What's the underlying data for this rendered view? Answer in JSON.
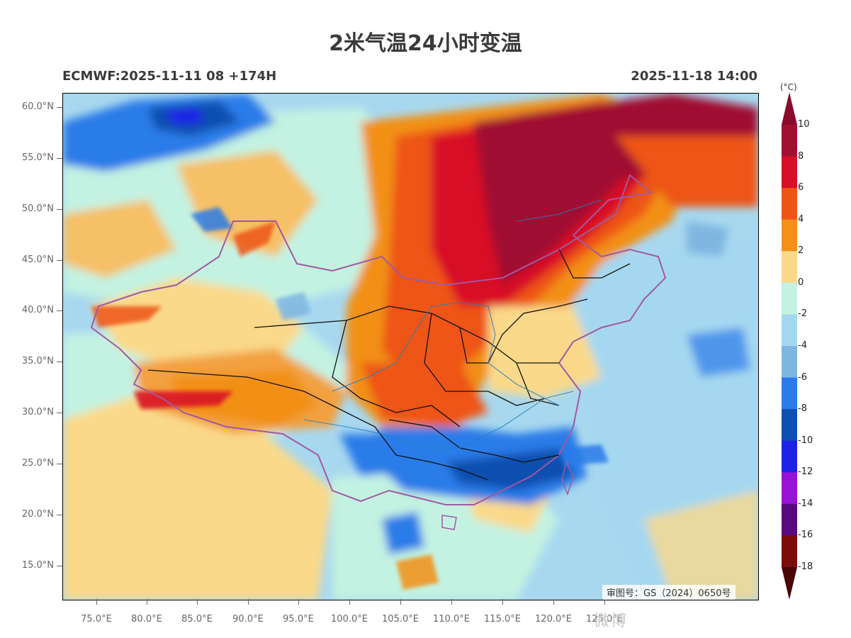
{
  "title": "2米气温24小时变温",
  "subtitle_left": "ECMWF:2025-11-11 08 +174H",
  "subtitle_right": "2025-11-18 14:00",
  "approval_number": "审图号：GS（2024）0650号",
  "watermark": "微博",
  "axes": {
    "lat_labels": [
      "60.0°N",
      "55.0°N",
      "50.0°N",
      "45.0°N",
      "40.0°N",
      "35.0°N",
      "30.0°N",
      "25.0°N",
      "20.0°N",
      "15.0°N"
    ],
    "lon_labels": [
      "75.0°E",
      "80.0°E",
      "85.0°E",
      "90.0°E",
      "95.0°E",
      "100.0°E",
      "105.0°E",
      "110.0°E",
      "115.0°E",
      "120.0°E",
      "125.0°E"
    ]
  },
  "colorbar": {
    "unit": "(°C)",
    "labels": [
      "10",
      "8",
      "6",
      "4",
      "2",
      "0",
      "-2",
      "-4",
      "-6",
      "-8",
      "-10",
      "-12",
      "-14",
      "-16",
      "-18"
    ],
    "colors": [
      "#a01030",
      "#d80f28",
      "#ee5515",
      "#f29018",
      "#fad98a",
      "#c3f2e2",
      "#a5d8f0",
      "#7fb6e0",
      "#2b7be8",
      "#0c50b0",
      "#1e22e8",
      "#9812d8",
      "#5a0a80",
      "#7a0c0c"
    ],
    "top_color": "#8a0a2e",
    "bottom_color": "#4a0505"
  },
  "legend_colors": {
    "province_border": "#111111",
    "national_border": "#a05aa0",
    "rivers": "#2080c0"
  }
}
